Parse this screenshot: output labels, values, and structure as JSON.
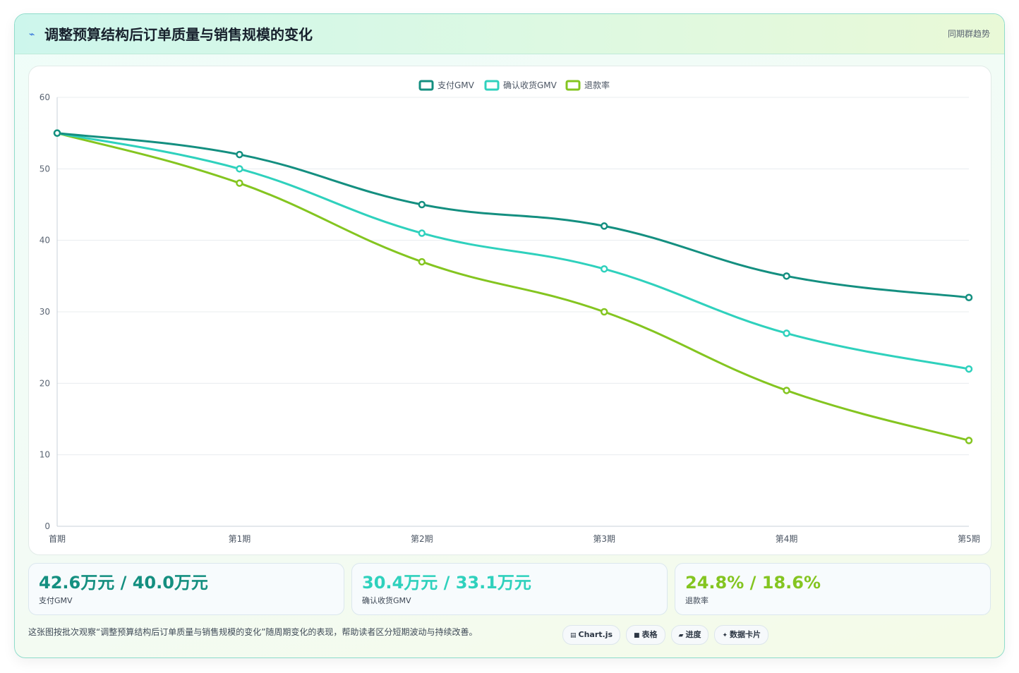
{
  "header": {
    "title": "调整预算结构后订单质量与销售规模的变化",
    "tag": "同期群趋势"
  },
  "chart_data": {
    "type": "line",
    "categories": [
      "首期",
      "第1期",
      "第2期",
      "第3期",
      "第4期",
      "第5期"
    ],
    "series": [
      {
        "name": "支付GMV",
        "color": "#148f80",
        "values": [
          55,
          52,
          45,
          42,
          35,
          32
        ]
      },
      {
        "name": "确认收货GMV",
        "color": "#2fd1bd",
        "values": [
          55,
          50,
          41,
          36,
          27,
          22
        ]
      },
      {
        "name": "退款率",
        "color": "#84c520",
        "values": [
          55,
          48,
          37,
          30,
          19,
          12
        ]
      }
    ],
    "ylim": [
      0,
      60
    ],
    "yticks": [
      0,
      10,
      20,
      30,
      40,
      50,
      60
    ],
    "grid": true,
    "legend": "top-center"
  },
  "kpis": [
    {
      "value": "42.6万元 / 40.0万元",
      "label": "支付GMV",
      "color": "#148f80"
    },
    {
      "value": "30.4万元 / 33.1万元",
      "label": "确认收货GMV",
      "color": "#2fd1bd"
    },
    {
      "value": "24.8% / 18.6%",
      "label": "退款率",
      "color": "#84c520"
    }
  ],
  "footnote": "这张图按批次观察“调整预算结构后订单质量与销售规模的变化”随周期变化的表现，帮助读者区分短期波动与持续改善。",
  "chips": [
    {
      "icon": "▤",
      "icon_name": "chart-icon",
      "label": "Chart.js"
    },
    {
      "icon": "■",
      "icon_name": "table-icon",
      "label": "表格"
    },
    {
      "icon": "▰",
      "icon_name": "progress-icon",
      "label": "进度"
    },
    {
      "icon": "✦",
      "icon_name": "sparkle-icon",
      "label": "数据卡片"
    }
  ],
  "colors": {
    "accent": "#148f80",
    "grid": "#e8ecef",
    "tick": "#5b6573"
  }
}
